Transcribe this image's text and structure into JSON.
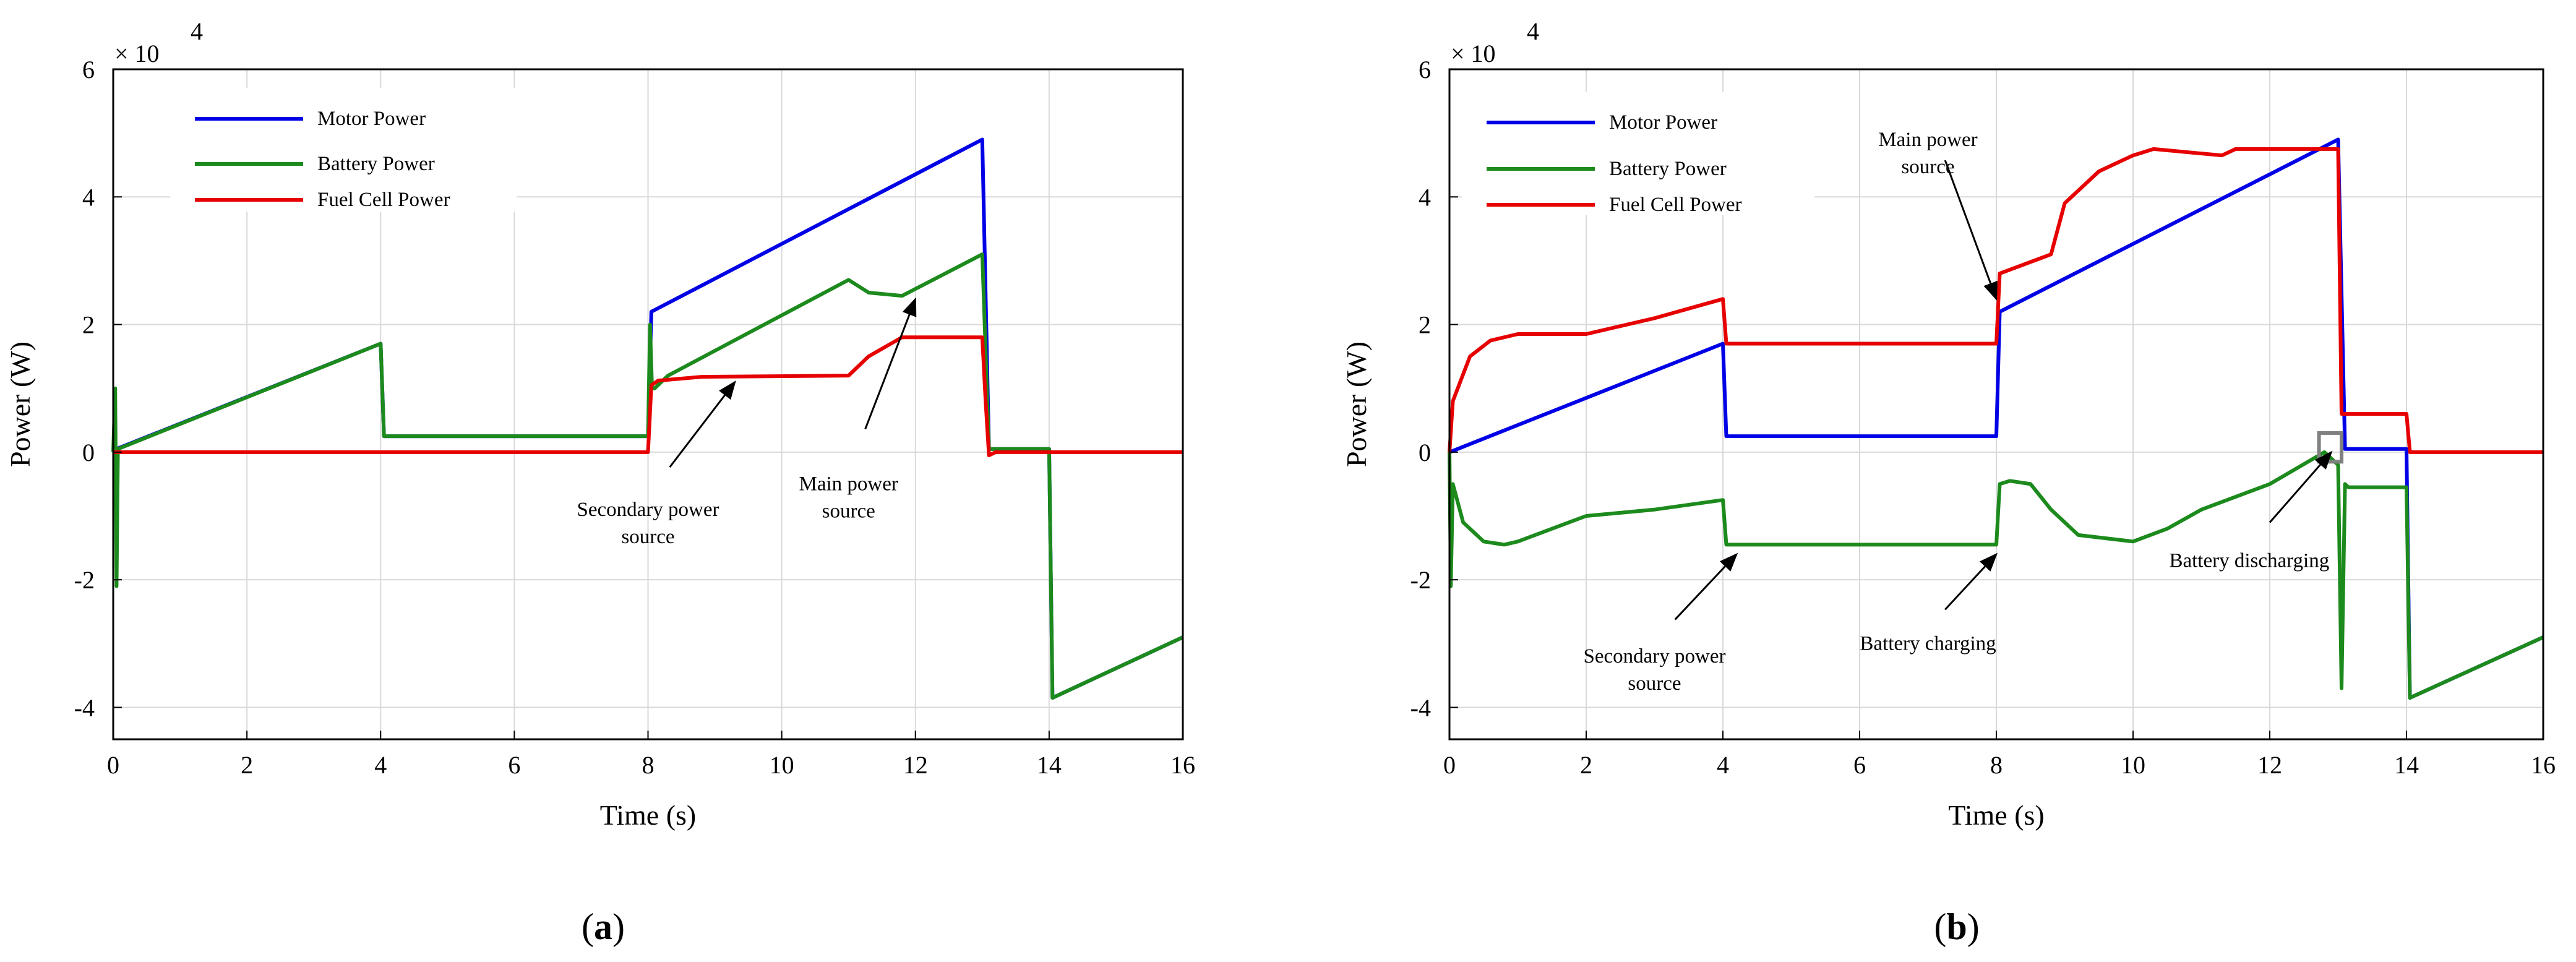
{
  "colors": {
    "motor": "#0000e6",
    "battery": "#1c8a1c",
    "fuel": "#e60000",
    "grid": "#d9d9d9",
    "axis": "#000000",
    "marker": "#808080"
  },
  "chart_data": [
    {
      "type": "line",
      "panel_label": "a",
      "xlabel": "Time (s)",
      "ylabel": "Power (W)",
      "exponent_label": "× 10",
      "exponent_power": "4",
      "xlim": [
        0,
        16
      ],
      "ylim": [
        -4.5,
        6
      ],
      "xticks": [
        "0",
        "2",
        "4",
        "6",
        "8",
        "10",
        "12",
        "14",
        "16"
      ],
      "yticks": [
        "-4",
        "-2",
        "0",
        "2",
        "4",
        "6"
      ],
      "grid": true,
      "legend": [
        "Motor Power",
        "Battery Power",
        "Fuel Cell Power"
      ],
      "legend_position": "top-left",
      "series": [
        {
          "name": "Motor Power",
          "x": [
            0,
            0.05,
            4,
            4.05,
            8,
            8.05,
            13,
            13.1,
            14,
            14.05,
            16
          ],
          "y": [
            0,
            0.05,
            1.7,
            0.25,
            0.25,
            2.2,
            4.9,
            0.05,
            0.05,
            -3.85,
            -2.9
          ]
        },
        {
          "name": "Battery Power",
          "x": [
            0,
            0.03,
            0.05,
            0.07,
            4,
            4.05,
            8,
            8.03,
            8.06,
            8.1,
            8.3,
            11,
            11.3,
            11.8,
            13,
            13.1,
            14,
            14.05,
            16
          ],
          "y": [
            0,
            1.0,
            -2.1,
            0.05,
            1.7,
            0.25,
            0.25,
            2.0,
            1.0,
            1.0,
            1.2,
            2.7,
            2.5,
            2.45,
            3.1,
            0.05,
            0.05,
            -3.85,
            -2.9
          ]
        },
        {
          "name": "Fuel Cell Power",
          "x": [
            0,
            8,
            8.05,
            8.15,
            8.8,
            11,
            11.3,
            11.8,
            13,
            13.05,
            13.1,
            13.2,
            16
          ],
          "y": [
            0,
            0,
            1.05,
            1.12,
            1.18,
            1.2,
            1.5,
            1.8,
            1.8,
            0.8,
            -0.05,
            0,
            0
          ]
        }
      ],
      "annotations": [
        {
          "text": [
            "Secondary power",
            "source"
          ],
          "target": [
            9.3,
            1.1
          ],
          "text_at": [
            8.0,
            -1.0
          ]
        },
        {
          "text": [
            "Main power",
            "source"
          ],
          "target": [
            12.0,
            2.4
          ],
          "text_at": [
            11.0,
            -0.6
          ]
        }
      ]
    },
    {
      "type": "line",
      "panel_label": "b",
      "xlabel": "Time (s)",
      "ylabel": "Power (W)",
      "exponent_label": "× 10",
      "exponent_power": "4",
      "xlim": [
        0,
        16
      ],
      "ylim": [
        -4.5,
        6
      ],
      "xticks": [
        "0",
        "2",
        "4",
        "6",
        "8",
        "10",
        "12",
        "14",
        "16"
      ],
      "yticks": [
        "-4",
        "-2",
        "0",
        "2",
        "4",
        "6"
      ],
      "grid": true,
      "legend": [
        "Motor Power",
        "Battery Power",
        "Fuel Cell Power"
      ],
      "legend_position": "top-left",
      "series": [
        {
          "name": "Motor Power",
          "x": [
            0,
            4,
            4.05,
            8,
            8.05,
            13,
            13.1,
            14,
            14.05,
            16
          ],
          "y": [
            0,
            1.7,
            0.25,
            0.25,
            2.2,
            4.9,
            0.05,
            0.05,
            -3.85,
            -2.9
          ]
        },
        {
          "name": "Battery Power",
          "x": [
            0,
            0.02,
            0.05,
            0.2,
            0.5,
            0.8,
            1.0,
            2.0,
            3.0,
            4.0,
            4.05,
            8.0,
            8.05,
            8.2,
            8.5,
            8.8,
            9.2,
            10.0,
            10.5,
            11.0,
            12.0,
            12.8,
            13.0,
            13.05,
            13.1,
            13.15,
            13.2,
            14.0,
            14.05,
            16
          ],
          "y": [
            0,
            -2.1,
            -0.5,
            -1.1,
            -1.4,
            -1.45,
            -1.4,
            -1.0,
            -0.9,
            -0.75,
            -1.45,
            -1.45,
            -0.5,
            -0.45,
            -0.5,
            -0.9,
            -1.3,
            -1.4,
            -1.2,
            -0.9,
            -0.5,
            0,
            -0.2,
            -3.7,
            -0.5,
            -0.55,
            -0.55,
            -0.55,
            -3.85,
            -2.9
          ]
        },
        {
          "name": "Fuel Cell Power",
          "x": [
            0,
            0.05,
            0.3,
            0.6,
            1.0,
            2.0,
            3.0,
            4.0,
            4.05,
            8.0,
            8.05,
            8.8,
            9.0,
            9.5,
            10.0,
            10.3,
            11.3,
            11.5,
            13.0,
            13.05,
            13.1,
            14.0,
            14.05,
            16
          ],
          "y": [
            0,
            0.8,
            1.5,
            1.75,
            1.85,
            1.85,
            2.1,
            2.4,
            1.7,
            1.7,
            2.8,
            3.1,
            3.9,
            4.4,
            4.65,
            4.75,
            4.65,
            4.75,
            4.75,
            0.6,
            0.6,
            0.6,
            0,
            0
          ]
        }
      ],
      "annotations": [
        {
          "text": [
            "Main power",
            "source"
          ],
          "target": [
            8.0,
            2.4
          ],
          "text_at": [
            7.0,
            4.8
          ]
        },
        {
          "text": [
            "Secondary power",
            "source"
          ],
          "target": [
            4.2,
            -1.6
          ],
          "text_at": [
            3.0,
            -3.3
          ]
        },
        {
          "text": [
            "Battery charging"
          ],
          "target": [
            8.0,
            -1.6
          ],
          "text_at": [
            7.0,
            -3.1
          ]
        },
        {
          "text": [
            "Battery discharging"
          ],
          "target": [
            12.9,
            0
          ],
          "text_at": [
            11.7,
            -1.8
          ]
        }
      ],
      "marker_box": {
        "x": [
          12.72,
          13.05
        ],
        "y": [
          -0.15,
          0.3
        ]
      }
    }
  ]
}
